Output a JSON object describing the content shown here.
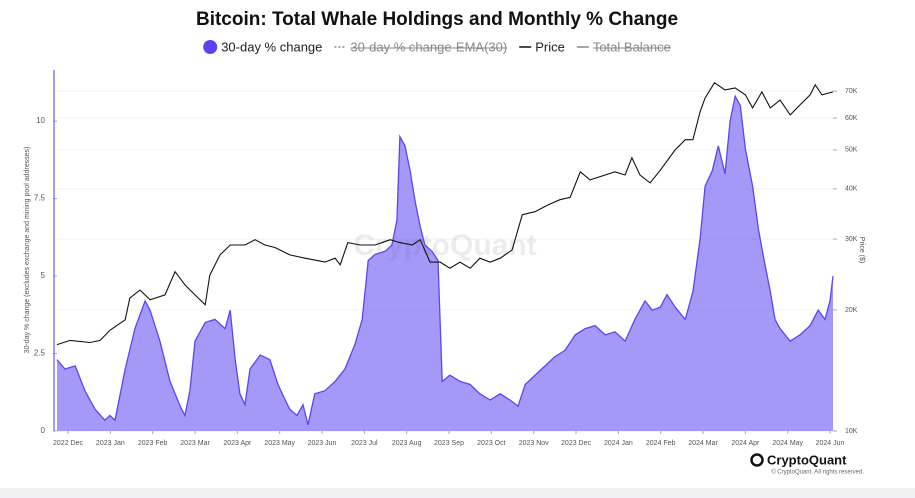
{
  "chart_data": {
    "type": "area",
    "title": "Bitcoin: Total Whale Holdings and Monthly % Change",
    "ylabel": "30-day % change (excludes exchange and mining pool addresses)",
    "y2label": "Price ($)",
    "watermark": "CryptoQuant",
    "brand": "CryptoQuant",
    "copyright": "© CryptoQuant. All rights reserved.",
    "xlim": [
      -0.26,
      18.07
    ],
    "xticks": [
      {
        "value": 0,
        "label": "2022 Dec"
      },
      {
        "value": 1,
        "label": "2023 Jan"
      },
      {
        "value": 2,
        "label": "2023 Feb"
      },
      {
        "value": 3,
        "label": "2023 Mar"
      },
      {
        "value": 4,
        "label": "2023 Apr"
      },
      {
        "value": 5,
        "label": "2023 May"
      },
      {
        "value": 6,
        "label": "2023 Jun"
      },
      {
        "value": 7,
        "label": "2023 Jul"
      },
      {
        "value": 8,
        "label": "2023 Aug"
      },
      {
        "value": 9,
        "label": "2023 Sep"
      },
      {
        "value": 10,
        "label": "2023 Oct"
      },
      {
        "value": 11,
        "label": "2023 Nov"
      },
      {
        "value": 12,
        "label": "2023 Dec"
      },
      {
        "value": 13,
        "label": "2024 Jan"
      },
      {
        "value": 14,
        "label": "2024 Feb"
      },
      {
        "value": 15,
        "label": "2024 Mar"
      },
      {
        "value": 16,
        "label": "2024 Apr"
      },
      {
        "value": 17,
        "label": "2024 May"
      },
      {
        "value": 18,
        "label": "2024 Jun"
      }
    ],
    "ylim": [
      0,
      11.65
    ],
    "yticks": [
      0,
      2.5,
      5,
      7.5,
      10
    ],
    "y2lim": [
      10000,
      79000
    ],
    "y2log": true,
    "y2ticks": [
      {
        "value": 10000,
        "label": "10K"
      },
      {
        "value": 20000,
        "label": "20K"
      },
      {
        "value": 30000,
        "label": "30K"
      },
      {
        "value": 40000,
        "label": "40K"
      },
      {
        "value": 50000,
        "label": "50K"
      },
      {
        "value": 60000,
        "label": "60K"
      },
      {
        "value": 70000,
        "label": "70K"
      }
    ],
    "grid": true,
    "series": [
      {
        "name": "30-day % change",
        "color": "#5b45f0",
        "visible": true,
        "style": "area",
        "x": [
          -0.26,
          -0.07,
          0.17,
          0.4,
          0.64,
          0.87,
          0.99,
          1.11,
          1.35,
          1.58,
          1.82,
          1.94,
          2.17,
          2.41,
          2.65,
          2.76,
          2.88,
          3.0,
          3.24,
          3.47,
          3.71,
          3.83,
          3.95,
          4.06,
          4.18,
          4.3,
          4.54,
          4.77,
          4.96,
          5.13,
          5.24,
          5.41,
          5.55,
          5.67,
          5.83,
          6.07,
          6.31,
          6.54,
          6.78,
          6.95,
          7.09,
          7.25,
          7.49,
          7.65,
          7.77,
          7.84,
          7.96,
          8.08,
          8.2,
          8.32,
          8.43,
          8.6,
          8.74,
          8.84,
          9.02,
          9.26,
          9.5,
          9.73,
          9.97,
          10.21,
          10.44,
          10.63,
          10.8,
          11.03,
          11.27,
          11.5,
          11.74,
          11.98,
          12.21,
          12.45,
          12.69,
          12.92,
          13.16,
          13.39,
          13.63,
          13.8,
          13.99,
          14.15,
          14.34,
          14.58,
          14.76,
          14.93,
          15.05,
          15.22,
          15.36,
          15.52,
          15.64,
          15.76,
          15.88,
          16.0,
          16.17,
          16.31,
          16.43,
          16.59,
          16.7,
          16.82,
          17.06,
          17.29,
          17.53,
          17.72,
          17.88,
          18.0,
          18.07
        ],
        "values": [
          2.3,
          2.0,
          2.1,
          1.3,
          0.7,
          0.35,
          0.5,
          0.35,
          2.0,
          3.3,
          4.2,
          3.9,
          2.9,
          1.6,
          0.8,
          0.5,
          1.3,
          2.9,
          3.5,
          3.6,
          3.3,
          3.9,
          2.3,
          1.2,
          0.85,
          2.0,
          2.45,
          2.3,
          1.5,
          1.0,
          0.7,
          0.5,
          0.85,
          0.2,
          1.2,
          1.3,
          1.6,
          2.0,
          2.8,
          3.6,
          5.5,
          5.7,
          5.8,
          6.0,
          6.8,
          9.5,
          9.2,
          8.4,
          7.4,
          6.6,
          6.0,
          5.8,
          5.5,
          1.6,
          1.8,
          1.6,
          1.5,
          1.2,
          1.0,
          1.2,
          1.0,
          0.8,
          1.5,
          1.8,
          2.1,
          2.4,
          2.6,
          3.1,
          3.3,
          3.4,
          3.1,
          3.2,
          2.9,
          3.6,
          4.2,
          3.9,
          4.0,
          4.4,
          4.0,
          3.6,
          4.5,
          6.2,
          7.9,
          8.4,
          9.2,
          8.3,
          10.0,
          10.8,
          10.5,
          9.1,
          7.9,
          6.5,
          5.6,
          4.5,
          3.6,
          3.3,
          2.9,
          3.1,
          3.4,
          3.9,
          3.6,
          4.2,
          5.0
        ]
      },
      {
        "name": "30-day % change-EMA(30)",
        "color": "#888888",
        "visible": false,
        "style": "dash"
      },
      {
        "name": "Price",
        "color": "#111111",
        "visible": true,
        "style": "line",
        "axis": "y2",
        "x": [
          -0.26,
          0.05,
          0.52,
          0.76,
          0.99,
          1.35,
          1.46,
          1.7,
          1.94,
          2.29,
          2.53,
          2.76,
          3.0,
          3.24,
          3.35,
          3.59,
          3.83,
          4.18,
          4.42,
          4.65,
          4.89,
          5.24,
          5.6,
          5.83,
          6.07,
          6.31,
          6.43,
          6.61,
          6.9,
          7.25,
          7.61,
          7.84,
          8.13,
          8.32,
          8.55,
          8.79,
          9.02,
          9.26,
          9.5,
          9.73,
          9.97,
          10.21,
          10.49,
          10.73,
          11.03,
          11.34,
          11.62,
          11.86,
          12.1,
          12.33,
          12.69,
          12.92,
          13.16,
          13.32,
          13.51,
          13.75,
          13.99,
          14.34,
          14.58,
          14.76,
          14.93,
          15.05,
          15.27,
          15.52,
          15.76,
          16.0,
          16.17,
          16.39,
          16.59,
          16.82,
          17.06,
          17.29,
          17.53,
          17.65,
          17.81,
          18.07
        ],
        "values": [
          16400,
          16800,
          16600,
          16800,
          17800,
          18900,
          21400,
          22400,
          21200,
          21800,
          24900,
          23100,
          21800,
          20600,
          24400,
          27400,
          29000,
          29000,
          29900,
          29000,
          28600,
          27400,
          26900,
          26600,
          26300,
          26900,
          25900,
          29400,
          29000,
          29000,
          29900,
          29400,
          29000,
          29900,
          26300,
          26300,
          25400,
          26300,
          25400,
          26900,
          26300,
          26900,
          28200,
          34500,
          35100,
          36500,
          37600,
          38100,
          44100,
          42100,
          43300,
          44100,
          43300,
          47800,
          43300,
          41400,
          44500,
          50000,
          53000,
          53000,
          62200,
          67300,
          73400,
          70500,
          71300,
          68500,
          63600,
          69700,
          63600,
          66500,
          61100,
          64700,
          68500,
          72600,
          68500,
          69700
        ]
      },
      {
        "name": "Total Balance",
        "color": "#888888",
        "visible": false,
        "style": "line"
      }
    ]
  }
}
